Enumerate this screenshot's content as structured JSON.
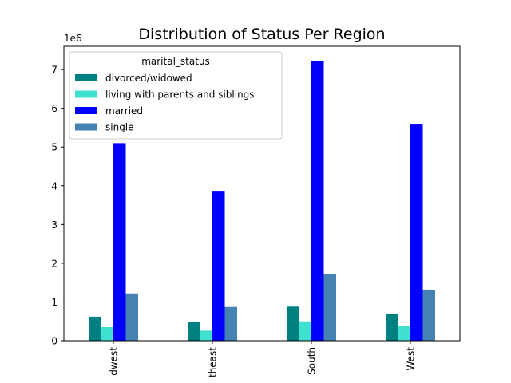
{
  "chart_data": {
    "type": "bar",
    "title": "Distribution of Status Per Region",
    "xlabel": "",
    "ylabel": "",
    "y_scale_label": "1e6",
    "ylim": [
      0,
      7.6
    ],
    "y_ticks": [
      0,
      1,
      2,
      3,
      4,
      5,
      6,
      7
    ],
    "categories": [
      "dwest",
      "theast",
      "South",
      "West"
    ],
    "legend": {
      "title": "marital_status",
      "position": "upper-left"
    },
    "grid": false,
    "series": [
      {
        "name": "divorced/widowed",
        "color": "#008080",
        "values": [
          0.62,
          0.48,
          0.88,
          0.68
        ]
      },
      {
        "name": "living with parents and siblings",
        "color": "#40e0d0",
        "values": [
          0.35,
          0.26,
          0.5,
          0.38
        ]
      },
      {
        "name": "married",
        "color": "#0000ff",
        "values": [
          5.1,
          3.87,
          7.23,
          5.58
        ]
      },
      {
        "name": "single",
        "color": "#4682b4",
        "values": [
          1.22,
          0.87,
          1.71,
          1.32
        ]
      }
    ]
  }
}
